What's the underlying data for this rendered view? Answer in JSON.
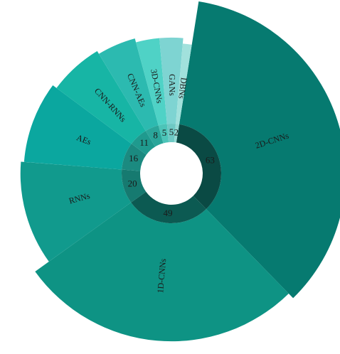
{
  "chart_data": {
    "type": "polar-donut",
    "categories": [
      "2D-CNNs",
      "1D-CNNs",
      "RNNs",
      "AEs",
      "CNN-RNNs",
      "CNN-AEs",
      "3D-CNNs",
      "GANs",
      "DBNs"
    ],
    "values": [
      63,
      49,
      20,
      16,
      11,
      8,
      5,
      5,
      2
    ],
    "colors": [
      "#067a70",
      "#0e9384",
      "#119a8d",
      "#0ba79f",
      "#17b5a5",
      "#2cbab0",
      "#4fd2c6",
      "#7ed4d2",
      "#a1e1dc"
    ],
    "ring_colors": [
      "#0a4a44",
      "#0c5a52",
      "#167a70",
      "#1b8a80",
      "#1f9a8e",
      "#2aa69a",
      "#4cc4b8",
      "#6ec9c4",
      "#94dad4"
    ]
  }
}
